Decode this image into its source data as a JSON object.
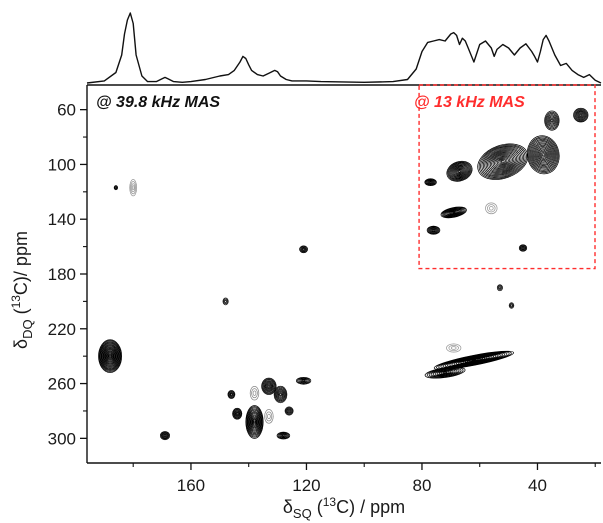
{
  "chart_data": {
    "type": "contour",
    "xlabel": {
      "main": "δ",
      "sub": "SQ",
      "rest": " (",
      "sup": "13",
      "end": "C) / ppm"
    },
    "ylabel": {
      "main": "δ",
      "sub": "DQ",
      "rest": " (",
      "sup": "13",
      "end": "C)/ ppm"
    },
    "x_axis": {
      "ticks": [
        160,
        120,
        80,
        40
      ],
      "tick_labels": [
        "160",
        "120",
        "80",
        "40"
      ],
      "reversed": true,
      "range": [
        196,
        18
      ]
    },
    "y_axis": {
      "ticks": [
        60,
        100,
        140,
        180,
        220,
        260,
        300
      ],
      "tick_labels": [
        "60",
        "100",
        "140",
        "180",
        "220",
        "260",
        "300"
      ],
      "reversed": true,
      "range": [
        42,
        318
      ]
    },
    "annotations": [
      {
        "text": "@ 39.8 kHz MAS",
        "color": "#111111"
      },
      {
        "text": "@ 13 kHz MAS",
        "color": "#ff2d2d"
      }
    ],
    "inset_region": {
      "x": [
        81,
        18
      ],
      "y": [
        42,
        176
      ],
      "border_color": "#ff2d2d",
      "border_style": "dashed"
    },
    "projection_1d": {
      "x": [
        196,
        190,
        186,
        184,
        183,
        182,
        181,
        180,
        179,
        177,
        175,
        172,
        170,
        169,
        168,
        166,
        163,
        160,
        155,
        150,
        147,
        145,
        143,
        142,
        141,
        140,
        139,
        137,
        135,
        133,
        131,
        130,
        129,
        127,
        125,
        120,
        115,
        100,
        90,
        85,
        82,
        80,
        78,
        76,
        74,
        72,
        70,
        69,
        68,
        67,
        66,
        65,
        64,
        62,
        60,
        58,
        56,
        55,
        54,
        52,
        50,
        48,
        46,
        44,
        42,
        41,
        40,
        39,
        38,
        37,
        36,
        34,
        32,
        30,
        28,
        26,
        24,
        22,
        20,
        18
      ],
      "y": [
        0.0,
        0.03,
        0.15,
        0.4,
        0.7,
        0.9,
        1.0,
        0.85,
        0.4,
        0.1,
        0.02,
        0.02,
        0.06,
        0.08,
        0.06,
        0.02,
        0.01,
        0.02,
        0.05,
        0.1,
        0.12,
        0.18,
        0.3,
        0.38,
        0.35,
        0.26,
        0.18,
        0.12,
        0.1,
        0.14,
        0.18,
        0.16,
        0.1,
        0.05,
        0.03,
        0.03,
        0.02,
        0.01,
        0.02,
        0.05,
        0.2,
        0.45,
        0.58,
        0.6,
        0.62,
        0.6,
        0.7,
        0.72,
        0.68,
        0.55,
        0.64,
        0.6,
        0.5,
        0.3,
        0.55,
        0.6,
        0.5,
        0.38,
        0.48,
        0.55,
        0.5,
        0.4,
        0.5,
        0.56,
        0.45,
        0.38,
        0.3,
        0.45,
        0.62,
        0.68,
        0.6,
        0.4,
        0.25,
        0.28,
        0.18,
        0.12,
        0.08,
        0.12,
        0.04,
        0.0
      ]
    },
    "peaks": [
      {
        "x": 188,
        "y": 240,
        "sx": 4,
        "sy": 12,
        "rot": 0,
        "n": 18,
        "c": "#000000"
      },
      {
        "x": 169,
        "y": 298,
        "sx": 1.6,
        "sy": 3,
        "rot": 0,
        "n": 6,
        "c": "#000000"
      },
      {
        "x": 148,
        "y": 200,
        "sx": 0.9,
        "sy": 2.5,
        "rot": 0,
        "n": 3,
        "c": "#000000"
      },
      {
        "x": 138,
        "y": 288,
        "sx": 3,
        "sy": 12,
        "rot": 0,
        "n": 14,
        "c": "#000000"
      },
      {
        "x": 144,
        "y": 282,
        "sx": 1.6,
        "sy": 4,
        "rot": 0,
        "n": 7,
        "c": "#000000"
      },
      {
        "x": 146,
        "y": 268,
        "sx": 1.2,
        "sy": 3,
        "rot": 0,
        "n": 5,
        "c": "#000000"
      },
      {
        "x": 133,
        "y": 262,
        "sx": 2.5,
        "sy": 6,
        "rot": 0,
        "n": 9,
        "c": "#000000"
      },
      {
        "x": 129,
        "y": 268,
        "sx": 2.2,
        "sy": 6,
        "rot": 0,
        "n": 8,
        "c": "#000000"
      },
      {
        "x": 126,
        "y": 280,
        "sx": 1.4,
        "sy": 3,
        "rot": 0,
        "n": 5,
        "c": "#000000"
      },
      {
        "x": 121,
        "y": 258,
        "sx": 2.5,
        "sy": 2.5,
        "rot": 0,
        "n": 6,
        "c": "#000000"
      },
      {
        "x": 128,
        "y": 298,
        "sx": 2.2,
        "sy": 2.5,
        "rot": 0,
        "n": 6,
        "c": "#000000"
      },
      {
        "x": 121,
        "y": 162,
        "sx": 1.4,
        "sy": 2.5,
        "rot": 0,
        "n": 5,
        "c": "#000000"
      },
      {
        "x": 138,
        "y": 267,
        "sx": 1.5,
        "sy": 5,
        "rot": 0,
        "n": 3,
        "c": "#888888"
      },
      {
        "x": 133,
        "y": 284,
        "sx": 1.5,
        "sy": 5,
        "rot": 0,
        "n": 3,
        "c": "#888888"
      },
      {
        "x": 62,
        "y": 243,
        "sx": 14,
        "sy": 3.6,
        "rot": -11,
        "n": 18,
        "c": "#000000"
      },
      {
        "x": 72,
        "y": 252,
        "sx": 7,
        "sy": 3.5,
        "rot": -8,
        "n": 10,
        "c": "#000000"
      },
      {
        "x": 53,
        "y": 190,
        "sx": 0.9,
        "sy": 2.2,
        "rot": 0,
        "n": 3,
        "c": "#000000"
      },
      {
        "x": 49,
        "y": 203,
        "sx": 0.8,
        "sy": 2,
        "rot": 0,
        "n": 3,
        "c": "#000000"
      },
      {
        "x": 69,
        "y": 234,
        "sx": 2.5,
        "sy": 3,
        "rot": 0,
        "n": 3,
        "c": "#999999"
      },
      {
        "x": 45,
        "y": 161,
        "sx": 1.3,
        "sy": 2.4,
        "rot": 0,
        "n": 5,
        "c": "#000000"
      },
      {
        "x": 180,
        "y": 117,
        "sx": 1.2,
        "sy": 6,
        "rot": 0,
        "n": 4,
        "c": "#999999"
      },
      {
        "x": 186,
        "y": 117,
        "sx": 0.6,
        "sy": 1.5,
        "rot": 0,
        "n": 3,
        "c": "#000000"
      },
      {
        "x": 76,
        "y": 148,
        "sx": 2.2,
        "sy": 3,
        "rot": 0,
        "n": 7,
        "c": "#000000"
      },
      {
        "x": 69,
        "y": 135,
        "sx": 4.5,
        "sy": 3.5,
        "rot": -12,
        "n": 11,
        "c": "#000000"
      },
      {
        "x": 77,
        "y": 113,
        "sx": 2,
        "sy": 2.5,
        "rot": 0,
        "n": 7,
        "c": "#000000"
      },
      {
        "x": 67,
        "y": 105,
        "sx": 4.5,
        "sy": 7,
        "rot": -20,
        "n": 13,
        "c": "#000000"
      },
      {
        "x": 52,
        "y": 98,
        "sx": 9,
        "sy": 12,
        "rot": -20,
        "n": 18,
        "c": "#000000"
      },
      {
        "x": 38,
        "y": 93,
        "sx": 5.5,
        "sy": 14,
        "rot": -10,
        "n": 16,
        "c": "#000000"
      },
      {
        "x": 25,
        "y": 64,
        "sx": 2.5,
        "sy": 5,
        "rot": 0,
        "n": 8,
        "c": "#000000"
      },
      {
        "x": 35,
        "y": 68,
        "sx": 2.5,
        "sy": 7,
        "rot": 0,
        "n": 8,
        "c": "#000000"
      },
      {
        "x": 56,
        "y": 132,
        "sx": 2,
        "sy": 4,
        "rot": 0,
        "n": 3,
        "c": "#999999"
      }
    ]
  }
}
